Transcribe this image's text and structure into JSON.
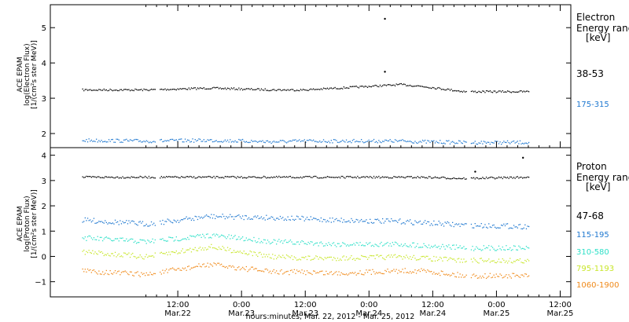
{
  "chart_data": [
    {
      "type": "scatter",
      "panel": "electron",
      "ylabel_lines": [
        "ACE EPAM",
        "log(Electron Flux)",
        "[1/(cm²s ster MeV)]"
      ],
      "ylim": [
        1.6,
        5.65
      ],
      "yticks": [
        2,
        3,
        4,
        5
      ],
      "legend_title_lines": [
        "Electron",
        "Energy range",
        "[keV]"
      ],
      "x": [
        "2012-03-21T18:00",
        "2012-03-22T06:00",
        "2012-03-22T18:00",
        "2012-03-23T06:00",
        "2012-03-23T12:00",
        "2012-03-23T18:00",
        "2012-03-24T06:00",
        "2012-03-24T10:00",
        "2012-03-24T18:00",
        "2012-03-25T06:00"
      ],
      "series": [
        {
          "name": "38-53",
          "color": "#000000",
          "values": [
            3.25,
            3.25,
            3.3,
            3.25,
            3.25,
            3.3,
            3.4,
            3.35,
            3.2,
            3.2
          ]
        },
        {
          "name": "175-315",
          "color": "#1f78d0",
          "values": [
            1.82,
            1.8,
            1.82,
            1.78,
            1.8,
            1.8,
            1.8,
            1.78,
            1.76,
            1.76
          ]
        }
      ],
      "annotations": [
        {
          "x": "2012-03-24T03:00",
          "y": 5.25,
          "series": "38-53"
        },
        {
          "x": "2012-03-24T03:00",
          "y": 3.75,
          "series": "38-53"
        }
      ]
    },
    {
      "type": "scatter",
      "panel": "proton",
      "ylabel_lines": [
        "ACE EPAM",
        "log(Proton Flux)",
        "[1/(cm²s ster MeV)]"
      ],
      "ylim": [
        -1.6,
        4.3
      ],
      "yticks": [
        -1,
        0,
        1,
        2,
        3,
        4
      ],
      "legend_title_lines": [
        "Proton",
        "Energy range",
        "[keV]"
      ],
      "x": [
        "2012-03-21T18:00",
        "2012-03-22T06:00",
        "2012-03-22T18:00",
        "2012-03-23T06:00",
        "2012-03-23T12:00",
        "2012-03-23T18:00",
        "2012-03-24T06:00",
        "2012-03-24T10:00",
        "2012-03-24T18:00",
        "2012-03-25T06:00"
      ],
      "series": [
        {
          "name": "47-68",
          "color": "#000000",
          "values": [
            3.15,
            3.15,
            3.15,
            3.15,
            3.15,
            3.15,
            3.15,
            3.15,
            3.1,
            3.15
          ]
        },
        {
          "name": "115-195",
          "color": "#1f78d0",
          "values": [
            1.45,
            1.3,
            1.6,
            1.55,
            1.5,
            1.45,
            1.4,
            1.35,
            1.25,
            1.2
          ]
        },
        {
          "name": "310-580",
          "color": "#2ee0c8",
          "values": [
            0.75,
            0.6,
            0.85,
            0.6,
            0.55,
            0.5,
            0.5,
            0.45,
            0.35,
            0.35
          ]
        },
        {
          "name": "795-1193",
          "color": "#c8e62a",
          "values": [
            0.2,
            0.0,
            0.4,
            0.0,
            -0.05,
            -0.05,
            0.0,
            -0.05,
            -0.15,
            -0.15
          ]
        },
        {
          "name": "1060-1900",
          "color": "#f08a1a",
          "values": [
            -0.55,
            -0.7,
            -0.3,
            -0.6,
            -0.6,
            -0.65,
            -0.55,
            -0.55,
            -0.75,
            -0.75
          ]
        }
      ],
      "annotations": [
        {
          "x": "2012-03-24T20:00",
          "y": 3.35,
          "series": "47-68"
        },
        {
          "x": "2012-03-25T05:00",
          "y": 3.9,
          "series": "47-68"
        }
      ]
    }
  ],
  "x_ticks": [
    {
      "time": "12:00",
      "date": "Mar.22"
    },
    {
      "time": "0:00",
      "date": "Mar.23"
    },
    {
      "time": "12:00",
      "date": "Mar.23"
    },
    {
      "time": "0:00",
      "date": "Mar.24"
    },
    {
      "time": "12:00",
      "date": "Mar.24"
    },
    {
      "time": "0:00",
      "date": "Mar.25"
    },
    {
      "time": "12:00",
      "date": "Mar.25"
    }
  ],
  "xlabel": "hours:minutes, Mar. 22, 2012 - Mar. 25, 2012"
}
